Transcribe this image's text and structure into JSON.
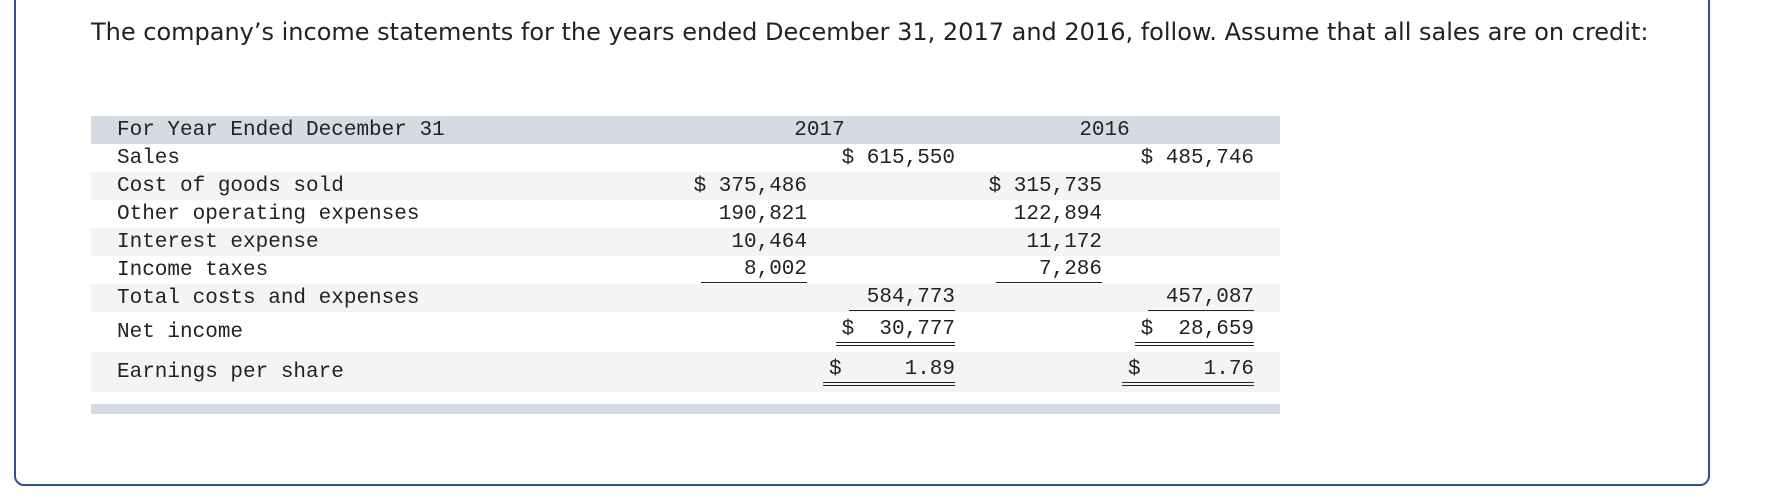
{
  "intro": "The company’s income statements for the years ended December 31, 2017 and 2016, follow. Assume that all sales are on credit:",
  "table": {
    "header": [
      "For Year Ended December 31",
      "2017",
      "2016"
    ],
    "rows": [
      {
        "label": "Sales",
        "total_2017": "$ 615,550",
        "total_2016": "$ 485,746"
      },
      {
        "label": "Cost of goods sold",
        "detail_2017": "$ 375,486",
        "detail_2016": "$ 315,735"
      },
      {
        "label": "Other operating expenses",
        "detail_2017": "190,821",
        "detail_2016": "122,894"
      },
      {
        "label": "Interest expense",
        "detail_2017": "10,464",
        "detail_2016": "11,172"
      },
      {
        "label": "Income taxes",
        "detail_2017": "8,002",
        "detail_2016": "7,286"
      },
      {
        "label": "Total costs and expenses",
        "total_2017": "584,773",
        "total_2016": "457,087"
      },
      {
        "label": "Net income",
        "total_2017": "$  30,777",
        "total_2016": "$  28,659"
      },
      {
        "label": "Earnings per share",
        "total_2017": "$     1.89",
        "total_2016": "$     1.76"
      }
    ]
  }
}
